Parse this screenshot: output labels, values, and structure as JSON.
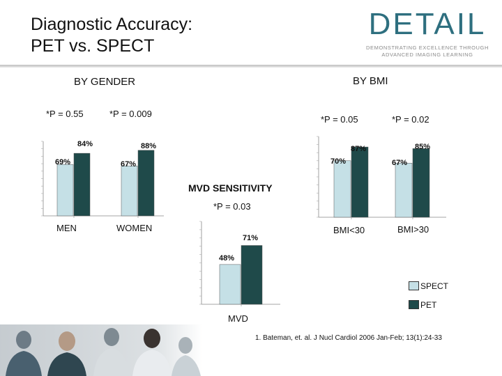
{
  "title": "Diagnostic Accuracy:\nPET vs. SPECT",
  "logo": {
    "word": "DETAIL",
    "tagline_1": "DEMONSTRATING EXCELLENCE THROUGH",
    "tagline_2": "ADVANCED IMAGING LEARNING"
  },
  "sections": {
    "gender": "BY GENDER",
    "bmi": "BY BMI",
    "mvd": "MVD SENSITIVITY"
  },
  "pvalues": {
    "men": "*P = 0.55",
    "women": "*P = 0.009",
    "bmi_low": "*P = 0.05",
    "bmi_high": "*P = 0.02",
    "mvd": "*P = 0.03"
  },
  "categories": {
    "men": "MEN",
    "women": "WOMEN",
    "bmi_low": "BMI<30",
    "bmi_high": "BMI>30",
    "mvd": "MVD"
  },
  "legend": {
    "spect": "SPECT",
    "pet": "PET"
  },
  "colors": {
    "spect": "#c5e0e6",
    "pet": "#1f4a4a"
  },
  "reference": "1. Bateman, et. al. J Nucl Cardiol 2006 Jan-Feb; 13(1):24-33",
  "chart_data": [
    {
      "type": "bar",
      "categories": [
        "MEN",
        "WOMEN"
      ],
      "series": [
        {
          "name": "SPECT",
          "values": [
            69,
            67
          ]
        },
        {
          "name": "PET",
          "values": [
            84,
            88
          ]
        }
      ],
      "data_labels": [
        "69%",
        "84%",
        "67%",
        "88%"
      ],
      "ylim": [
        0,
        100
      ]
    },
    {
      "type": "bar",
      "categories": [
        "BMI<30",
        "BMI>30"
      ],
      "series": [
        {
          "name": "SPECT",
          "values": [
            70,
            67
          ]
        },
        {
          "name": "PET",
          "values": [
            87,
            85
          ]
        }
      ],
      "data_labels": [
        "70%",
        "87%",
        "67%",
        "85%"
      ],
      "ylim": [
        0,
        100
      ]
    },
    {
      "type": "bar",
      "categories": [
        "MVD"
      ],
      "series": [
        {
          "name": "SPECT",
          "values": [
            48
          ]
        },
        {
          "name": "PET",
          "values": [
            71
          ]
        }
      ],
      "data_labels": [
        "48%",
        "71%"
      ],
      "ylim": [
        0,
        100
      ]
    }
  ]
}
